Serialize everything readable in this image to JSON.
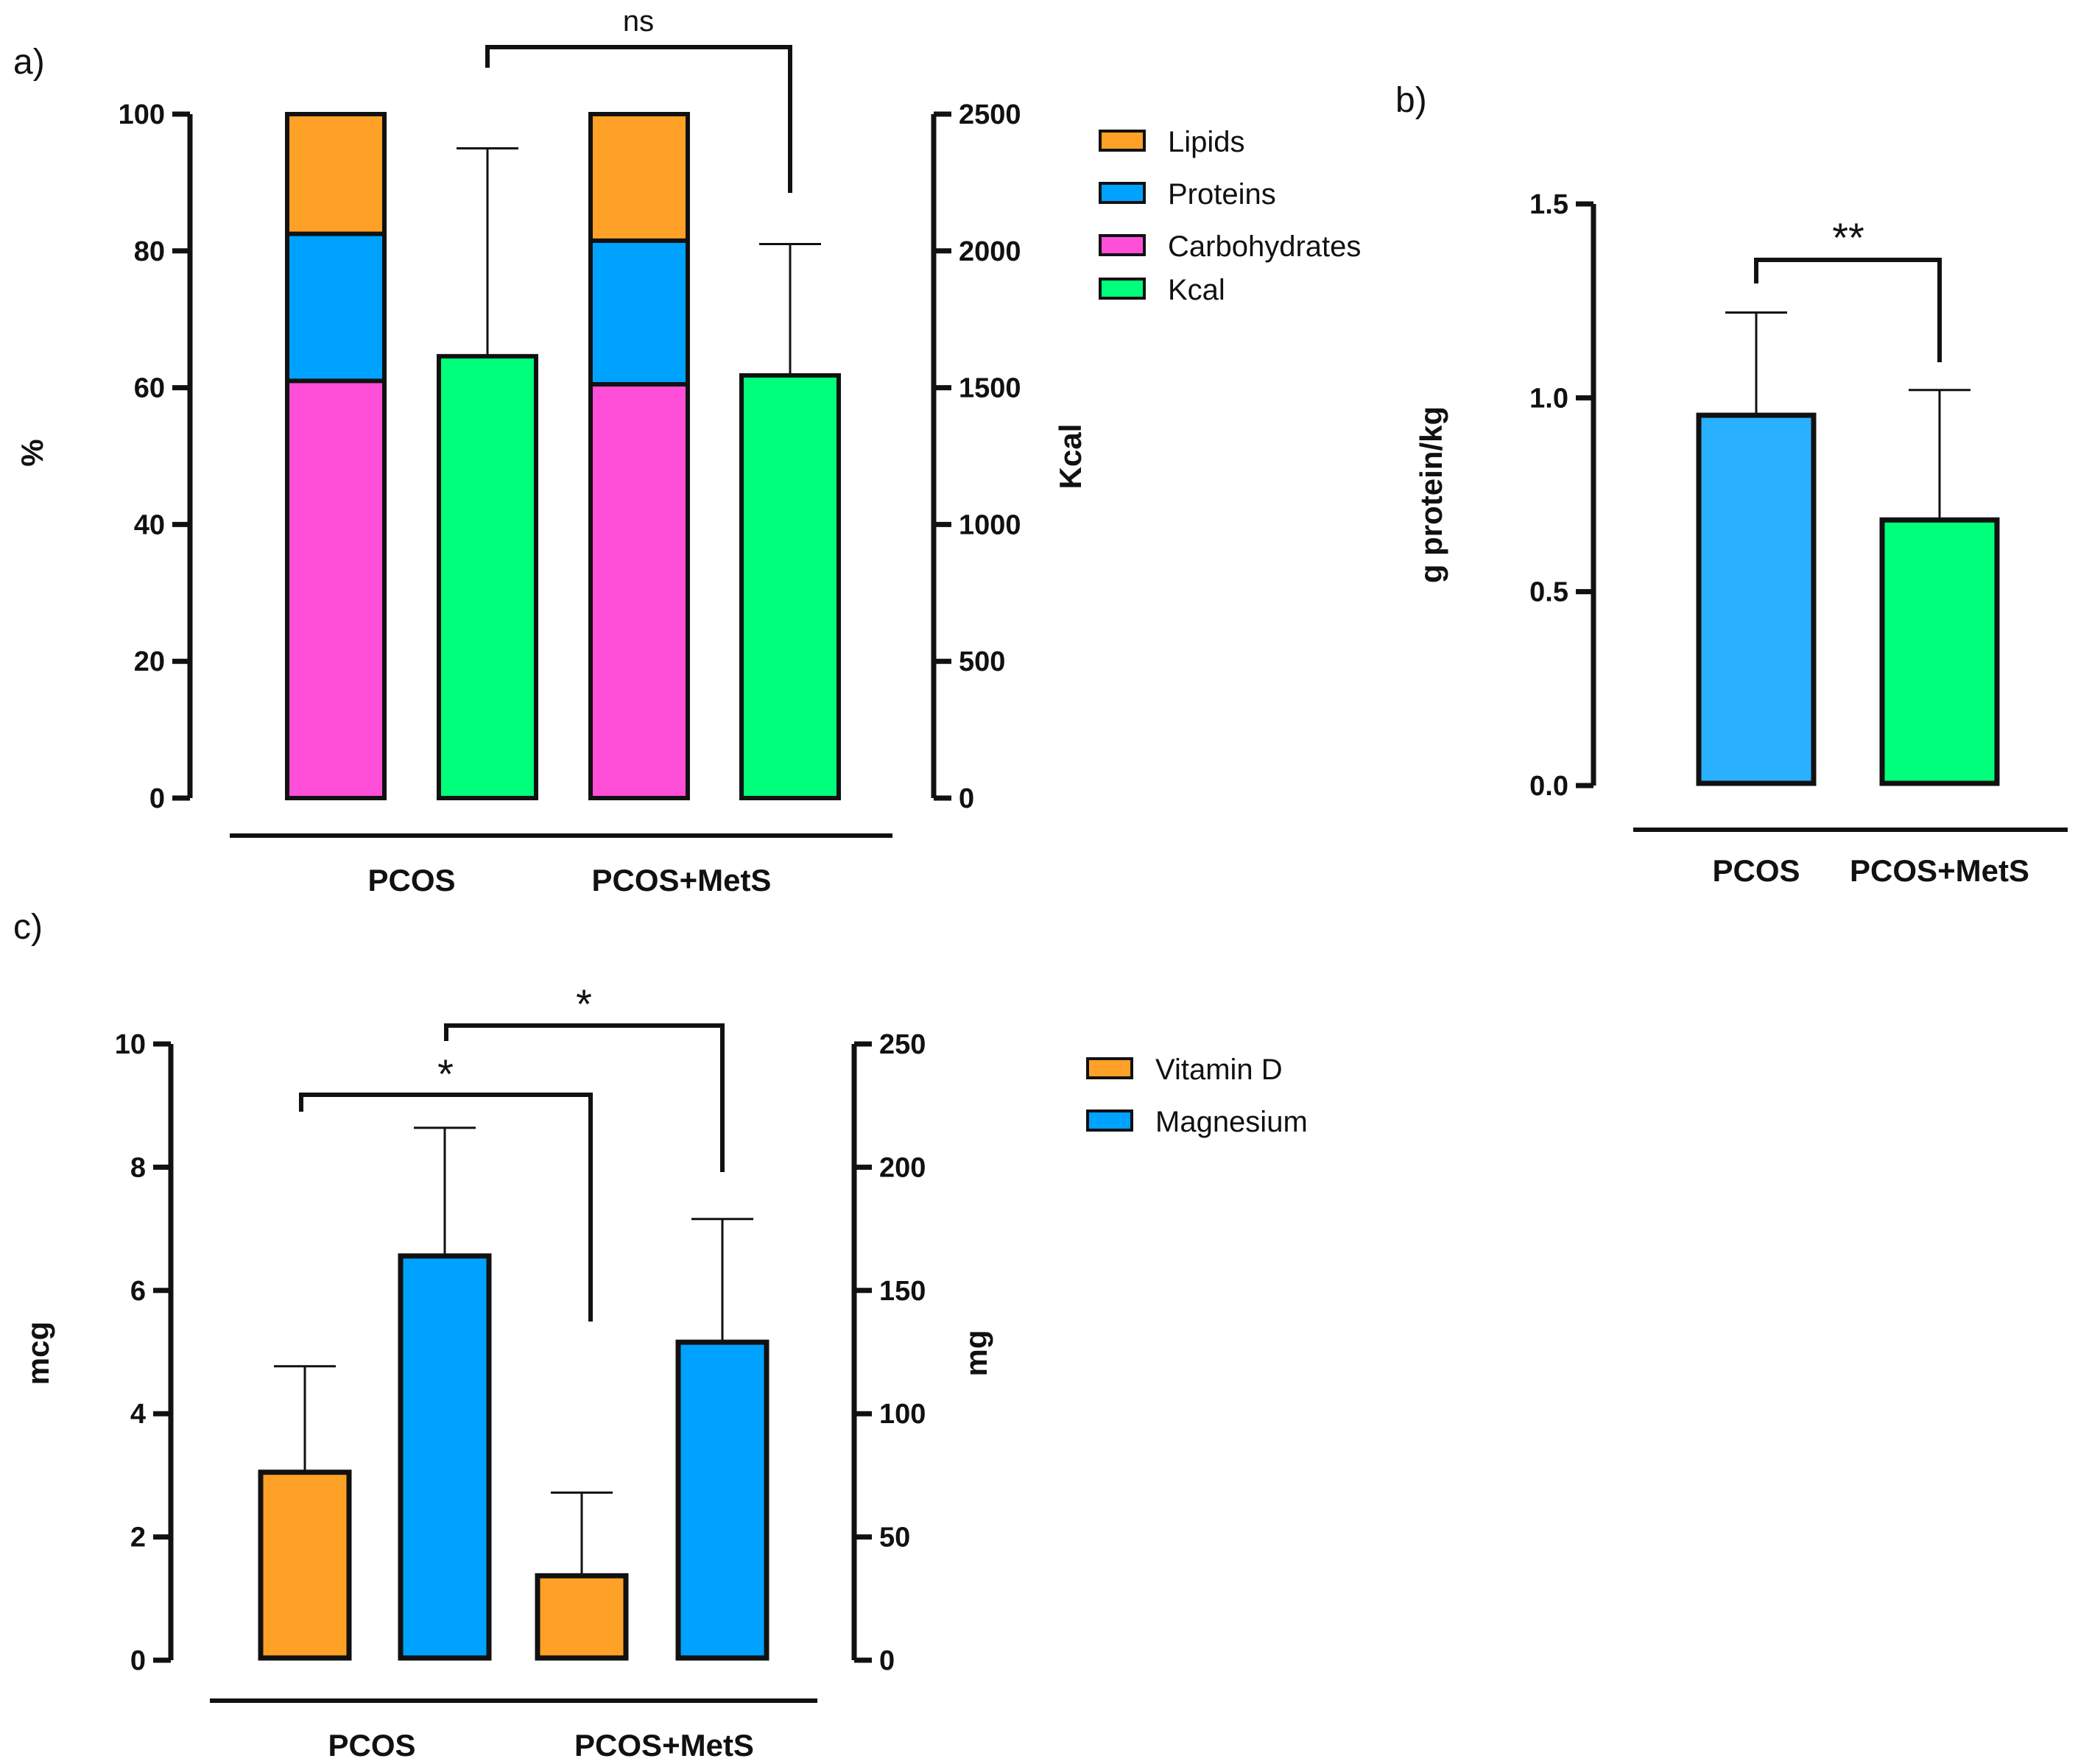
{
  "chart_data": [
    {
      "panel": "a)",
      "type": "bar",
      "categories": [
        "PCOS",
        "PCOS+MetS"
      ],
      "ylabel_left": "%",
      "ylabel_right": "Kcal",
      "ylim_left": [
        0,
        100
      ],
      "ylim_right": [
        0,
        2500
      ],
      "yticks_left": [
        "0",
        "20",
        "40",
        "60",
        "80",
        "100"
      ],
      "yticks_right": [
        "0",
        "500",
        "1000",
        "1500",
        "2000",
        "2500"
      ],
      "stacked_series": [
        {
          "name": "Carbohydrates",
          "color": "#ff4fd8",
          "values": [
            61,
            60.5
          ]
        },
        {
          "name": "Proteins",
          "color": "#00a2ff",
          "values": [
            21.5,
            21
          ]
        },
        {
          "name": "Lipids",
          "color": "#ffa126",
          "values": [
            17.5,
            18.5
          ]
        }
      ],
      "kcal_series": {
        "name": "Kcal",
        "color": "#00ff7a",
        "values": [
          1615,
          1545
        ],
        "error": [
          760,
          480
        ]
      },
      "legend": [
        "Lipids",
        "Proteins",
        "Carbohydrates",
        "Kcal"
      ],
      "annotation": "ns"
    },
    {
      "panel": "b)",
      "type": "bar",
      "categories": [
        "PCOS",
        "PCOS+MetS"
      ],
      "ylabel": "g protein/kg",
      "ylim": [
        0,
        1.5
      ],
      "yticks": [
        "0.0",
        "0.5",
        "1.0",
        "1.5"
      ],
      "values": [
        0.955,
        0.685
      ],
      "error": [
        0.265,
        0.335
      ],
      "colors": [
        "#29b0ff",
        "#00ff7a"
      ],
      "annotation": "**"
    },
    {
      "panel": "c)",
      "type": "bar",
      "categories": [
        "PCOS",
        "PCOS+MetS"
      ],
      "ylabel_left": "mcg",
      "ylabel_right": "mg",
      "ylim_left": [
        0,
        10
      ],
      "ylim_right": [
        0,
        250
      ],
      "yticks_left": [
        "0",
        "2",
        "4",
        "6",
        "8",
        "10"
      ],
      "yticks_right": [
        "0",
        "50",
        "100",
        "150",
        "200",
        "250"
      ],
      "series": [
        {
          "name": "Vitamin D",
          "color": "#ffa126",
          "axis": "left",
          "values": [
            3.05,
            1.37
          ],
          "error": [
            1.72,
            1.35
          ]
        },
        {
          "name": "Magnesium",
          "color": "#00a2ff",
          "axis": "right",
          "values": [
            164,
            129
          ],
          "error": [
            52,
            50
          ]
        }
      ],
      "legend": [
        "Vitamin D",
        "Magnesium"
      ],
      "annotations": [
        "*",
        "*"
      ]
    }
  ]
}
